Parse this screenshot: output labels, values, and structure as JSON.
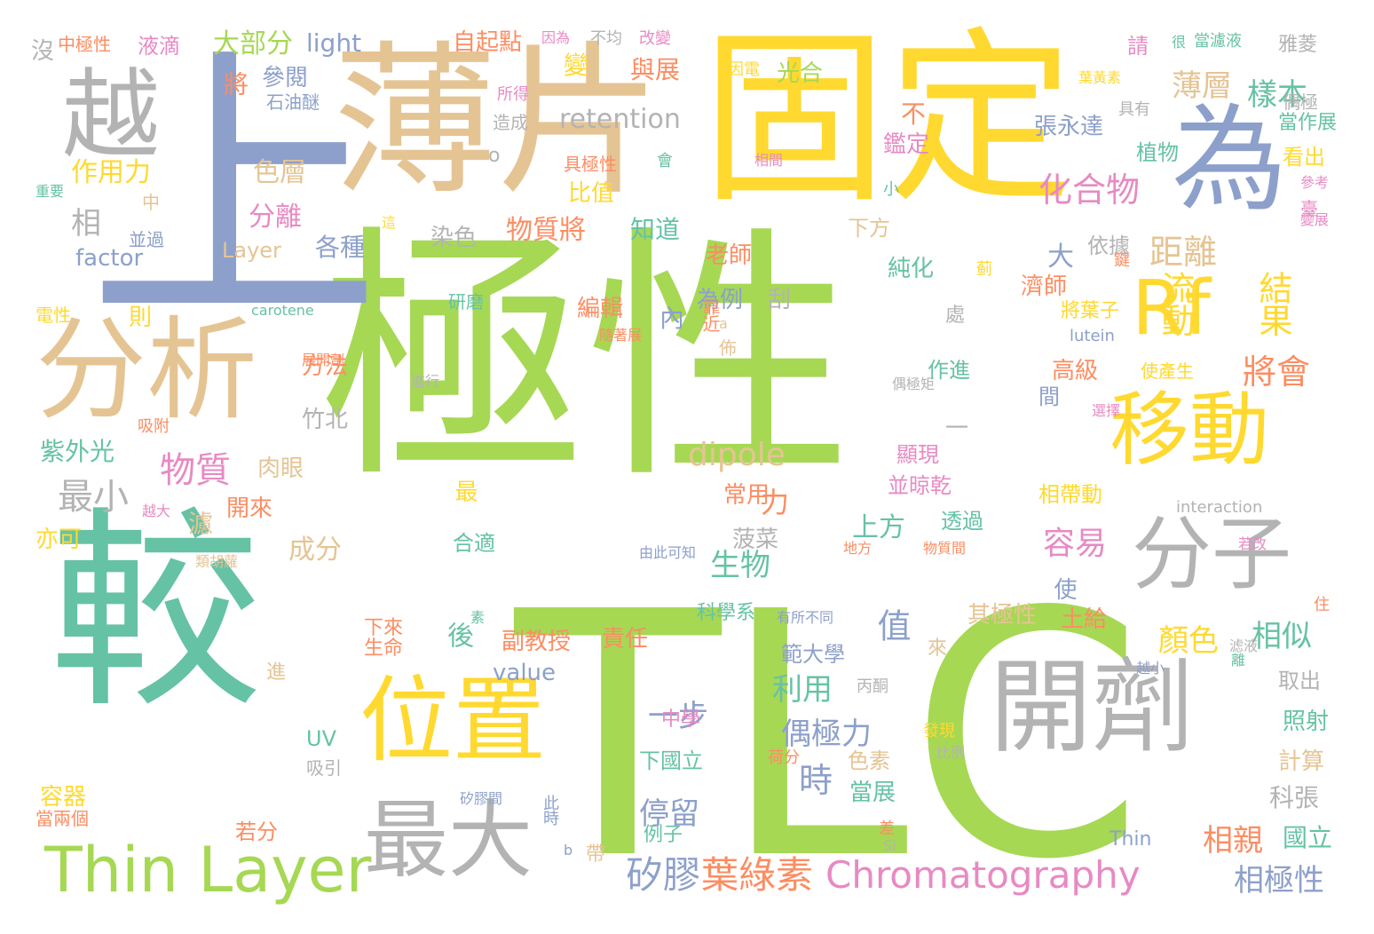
{
  "palette": {
    "green": "#a6d854",
    "teal": "#66c2a5",
    "yellow": "#ffd92f",
    "tan": "#e5c494",
    "grey": "#b3b3b3",
    "blue": "#8da0cb",
    "orange": "#fc8d62",
    "pink": "#e78ac3"
  },
  "words": [
    {
      "text": "極性",
      "c": "green"
    },
    {
      "text": "較",
      "c": "teal"
    },
    {
      "text": "TLC",
      "c": "green"
    },
    {
      "text": "固定",
      "c": "yellow"
    },
    {
      "text": "上",
      "c": "blue"
    },
    {
      "text": "薄片",
      "c": "tan"
    },
    {
      "text": "越",
      "c": "grey"
    },
    {
      "text": "為",
      "c": "blue"
    },
    {
      "text": "分析",
      "c": "tan"
    },
    {
      "text": "Rf",
      "c": "yellow"
    },
    {
      "text": "移動",
      "c": "yellow"
    },
    {
      "text": "分子",
      "c": "grey"
    },
    {
      "text": "位置",
      "c": "yellow"
    },
    {
      "text": "開劑",
      "c": "grey"
    },
    {
      "text": "最大",
      "c": "grey"
    },
    {
      "text": "Thin Layer",
      "c": "green"
    },
    {
      "text": "Chromatography",
      "c": "pink"
    },
    {
      "text": "矽膠",
      "c": "blue"
    },
    {
      "text": "葉綠素",
      "c": "orange"
    },
    {
      "text": "物質",
      "c": "pink"
    },
    {
      "text": "最小",
      "c": "grey"
    },
    {
      "text": "化合物",
      "c": "pink"
    },
    {
      "text": "距離",
      "c": "tan"
    },
    {
      "text": "流動",
      "c": "yellow"
    },
    {
      "text": "結果",
      "c": "yellow"
    },
    {
      "text": "將會",
      "c": "orange"
    },
    {
      "text": "樣本",
      "c": "teal"
    },
    {
      "text": "薄層",
      "c": "tan"
    },
    {
      "text": "dipole",
      "c": "tan"
    },
    {
      "text": "retention",
      "c": "grey"
    },
    {
      "text": "大部分",
      "c": "green"
    },
    {
      "text": "light",
      "c": "blue"
    },
    {
      "text": "作用力",
      "c": "yellow"
    },
    {
      "text": "色層",
      "c": "tan"
    },
    {
      "text": "分離",
      "c": "pink"
    },
    {
      "text": "物質將",
      "c": "orange"
    },
    {
      "text": "factor",
      "c": "blue"
    },
    {
      "text": "Layer",
      "c": "tan"
    },
    {
      "text": "各種",
      "c": "blue"
    },
    {
      "text": "染色",
      "c": "grey"
    },
    {
      "text": "知道",
      "c": "teal"
    },
    {
      "text": "比值",
      "c": "yellow"
    },
    {
      "text": "具極性",
      "c": "orange"
    },
    {
      "text": "自起點",
      "c": "orange"
    },
    {
      "text": "與展",
      "c": "orange"
    },
    {
      "text": "光合",
      "c": "green"
    },
    {
      "text": "參閱",
      "c": "blue"
    },
    {
      "text": "石油醚",
      "c": "blue"
    },
    {
      "text": "將",
      "c": "orange"
    },
    {
      "text": "相",
      "c": "grey"
    },
    {
      "text": "張永達",
      "c": "blue"
    },
    {
      "text": "鑑定",
      "c": "pink"
    },
    {
      "text": "植物",
      "c": "teal"
    },
    {
      "text": "當作展",
      "c": "teal"
    },
    {
      "text": "看出",
      "c": "yellow"
    },
    {
      "text": "雅菱",
      "c": "grey"
    },
    {
      "text": "偶極",
      "c": "grey"
    },
    {
      "text": "依據",
      "c": "grey"
    },
    {
      "text": "純化",
      "c": "teal"
    },
    {
      "text": "下方",
      "c": "tan"
    },
    {
      "text": "大",
      "c": "blue"
    },
    {
      "text": "老師",
      "c": "orange"
    },
    {
      "text": "為例",
      "c": "blue"
    },
    {
      "text": "內",
      "c": "blue"
    },
    {
      "text": "編輯",
      "c": "orange"
    },
    {
      "text": "靠近",
      "c": "orange"
    },
    {
      "text": "研磨",
      "c": "teal"
    },
    {
      "text": "方法",
      "c": "orange"
    },
    {
      "text": "竹北",
      "c": "grey"
    },
    {
      "text": "紫外光",
      "c": "teal"
    },
    {
      "text": "肉眼",
      "c": "tan"
    },
    {
      "text": "開來",
      "c": "orange"
    },
    {
      "text": "亦可",
      "c": "yellow"
    },
    {
      "text": "成分",
      "c": "tan"
    },
    {
      "text": "生物",
      "c": "teal"
    },
    {
      "text": "上方",
      "c": "teal"
    },
    {
      "text": "容易",
      "c": "pink"
    },
    {
      "text": "顏色",
      "c": "yellow"
    },
    {
      "text": "相似",
      "c": "teal"
    },
    {
      "text": "利用",
      "c": "teal"
    },
    {
      "text": "偶極力",
      "c": "blue"
    },
    {
      "text": "一步",
      "c": "blue"
    },
    {
      "text": "後",
      "c": "teal"
    },
    {
      "text": "值",
      "c": "blue"
    },
    {
      "text": "時",
      "c": "blue"
    },
    {
      "text": "停留",
      "c": "blue"
    },
    {
      "text": "相親",
      "c": "orange"
    },
    {
      "text": "相極性",
      "c": "blue"
    },
    {
      "text": "國立",
      "c": "teal"
    },
    {
      "text": "科張",
      "c": "grey"
    },
    {
      "text": "計算",
      "c": "tan"
    },
    {
      "text": "照射",
      "c": "teal"
    },
    {
      "text": "取出",
      "c": "grey"
    },
    {
      "text": "副教授",
      "c": "orange"
    },
    {
      "text": "責任",
      "c": "orange"
    },
    {
      "text": "科學系",
      "c": "teal"
    },
    {
      "text": "其極性",
      "c": "tan"
    },
    {
      "text": "土給",
      "c": "orange"
    },
    {
      "text": "範大學",
      "c": "blue"
    },
    {
      "text": "中學",
      "c": "pink"
    },
    {
      "text": "下國立",
      "c": "teal"
    },
    {
      "text": "色素",
      "c": "tan"
    },
    {
      "text": "當展",
      "c": "teal"
    },
    {
      "text": "例子",
      "c": "teal"
    },
    {
      "text": "生命",
      "c": "orange"
    },
    {
      "text": "下來",
      "c": "orange"
    },
    {
      "text": "容器",
      "c": "yellow"
    },
    {
      "text": "當兩個",
      "c": "orange"
    },
    {
      "text": "吸引",
      "c": "grey"
    },
    {
      "text": "若分",
      "c": "orange"
    },
    {
      "text": "value",
      "c": "blue"
    },
    {
      "text": "UV",
      "c": "teal"
    },
    {
      "text": "合適",
      "c": "teal"
    },
    {
      "text": "透過",
      "c": "teal"
    },
    {
      "text": "並晾乾",
      "c": "pink"
    },
    {
      "text": "顯現",
      "c": "pink"
    },
    {
      "text": "相帶動",
      "c": "yellow"
    },
    {
      "text": "高級",
      "c": "orange"
    },
    {
      "text": "間",
      "c": "blue"
    },
    {
      "text": "作進",
      "c": "teal"
    },
    {
      "text": "濾",
      "c": "tan"
    },
    {
      "text": "力",
      "c": "orange"
    },
    {
      "text": "常用",
      "c": "orange"
    },
    {
      "text": "菠菜",
      "c": "grey"
    },
    {
      "text": "處",
      "c": "grey"
    },
    {
      "text": "濟師",
      "c": "orange"
    },
    {
      "text": "使產生",
      "c": "yellow"
    },
    {
      "text": "將葉子",
      "c": "yellow"
    },
    {
      "text": "lutein",
      "c": "blue"
    },
    {
      "text": "interaction",
      "c": "grey"
    },
    {
      "text": "carotene",
      "c": "teal"
    },
    {
      "text": "中極性",
      "c": "orange"
    },
    {
      "text": "液滴",
      "c": "pink"
    },
    {
      "text": "沒",
      "c": "grey"
    },
    {
      "text": "因為",
      "c": "pink"
    },
    {
      "text": "不均",
      "c": "grey"
    },
    {
      "text": "改變",
      "c": "pink"
    },
    {
      "text": "變",
      "c": "yellow"
    },
    {
      "text": "因電",
      "c": "yellow"
    },
    {
      "text": "請",
      "c": "pink"
    },
    {
      "text": "很",
      "c": "teal"
    },
    {
      "text": "當濾液",
      "c": "teal"
    },
    {
      "text": "具有",
      "c": "grey"
    },
    {
      "text": "所得",
      "c": "pink"
    },
    {
      "text": "造成",
      "c": "grey"
    },
    {
      "text": "葉黃素",
      "c": "yellow"
    },
    {
      "text": "會",
      "c": "teal"
    },
    {
      "text": "相間",
      "c": "pink"
    },
    {
      "text": "不",
      "c": "orange"
    },
    {
      "text": "小",
      "c": "teal"
    },
    {
      "text": "重要",
      "c": "teal"
    },
    {
      "text": "參考",
      "c": "pink"
    },
    {
      "text": "臺",
      "c": "pink"
    },
    {
      "text": "變展",
      "c": "pink"
    },
    {
      "text": "中",
      "c": "tan"
    },
    {
      "text": "並過",
      "c": "blue"
    },
    {
      "text": "這",
      "c": "yellow"
    },
    {
      "text": "電性",
      "c": "yellow"
    },
    {
      "text": "則",
      "c": "yellow"
    },
    {
      "text": "展開劑",
      "c": "orange"
    },
    {
      "text": "進行",
      "c": "grey"
    },
    {
      "text": "吸附",
      "c": "orange"
    },
    {
      "text": "越大",
      "c": "pink"
    },
    {
      "text": "類胡蘿",
      "c": "tan"
    },
    {
      "text": "由此可知",
      "c": "blue"
    },
    {
      "text": "有所不同",
      "c": "blue"
    },
    {
      "text": "素",
      "c": "teal"
    },
    {
      "text": "進",
      "c": "tan"
    },
    {
      "text": "隨著展",
      "c": "orange"
    },
    {
      "text": "佈",
      "c": "tan"
    },
    {
      "text": "刮",
      "c": "grey"
    },
    {
      "text": "偶極矩",
      "c": "grey"
    },
    {
      "text": "選擇",
      "c": "pink"
    },
    {
      "text": "鍵",
      "c": "orange"
    },
    {
      "text": "蓟",
      "c": "yellow"
    },
    {
      "text": "地方",
      "c": "orange"
    },
    {
      "text": "物質間",
      "c": "orange"
    },
    {
      "text": "若改",
      "c": "pink"
    },
    {
      "text": "滤液",
      "c": "grey"
    },
    {
      "text": "越小",
      "c": "blue"
    },
    {
      "text": "離",
      "c": "teal"
    },
    {
      "text": "住",
      "c": "orange"
    },
    {
      "text": "丙酮",
      "c": "grey"
    },
    {
      "text": "發現",
      "c": "yellow"
    },
    {
      "text": "荷分",
      "c": "orange"
    },
    {
      "text": "比例",
      "c": "grey"
    },
    {
      "text": "矽膠間",
      "c": "blue"
    },
    {
      "text": "此時",
      "c": "blue"
    },
    {
      "text": "帶",
      "c": "tan"
    },
    {
      "text": "差",
      "c": "orange"
    },
    {
      "text": "Si",
      "c": "grey"
    },
    {
      "text": "Thin",
      "c": "blue"
    },
    {
      "text": "b",
      "c": "blue"
    },
    {
      "text": "a",
      "c": "tan"
    },
    {
      "text": "來",
      "c": "tan"
    },
    {
      "text": "使",
      "c": "blue"
    },
    {
      "text": "最",
      "c": "yellow"
    },
    {
      "text": "o",
      "c": "grey"
    },
    {
      "text": "一",
      "c": "grey"
    }
  ]
}
